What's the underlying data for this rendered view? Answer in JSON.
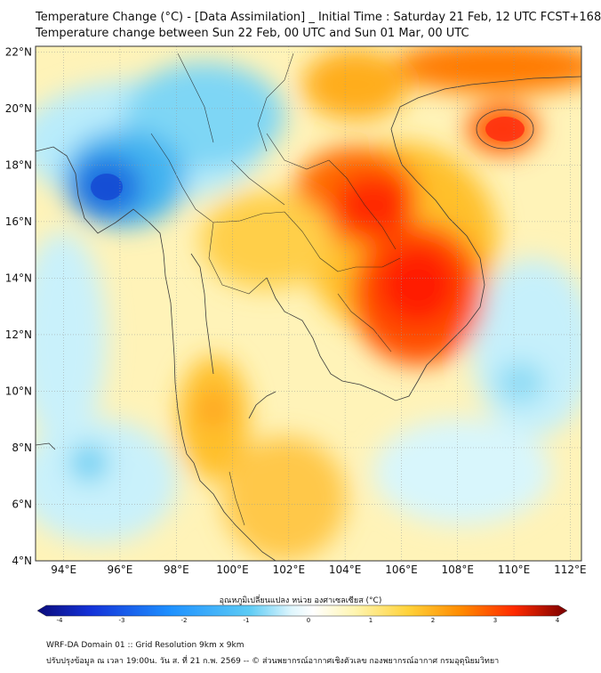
{
  "header": {
    "title_line1": "Temperature Change (°C) - [Data Assimilation] _ Initial Time : Saturday 21 Feb, 12 UTC FCST+168",
    "title_line2": "Temperature change between Sun 22 Feb, 00 UTC and Sun 01 Mar, 00 UTC"
  },
  "map": {
    "lat_labels": [
      "22°N",
      "20°N",
      "18°N",
      "16°N",
      "14°N",
      "12°N",
      "10°N",
      "8°N",
      "6°N",
      "4°N"
    ],
    "lon_labels": [
      "94°E",
      "96°E",
      "98°E",
      "100°E",
      "102°E",
      "104°E",
      "106°E",
      "108°E",
      "110°E",
      "112°E"
    ],
    "lat_values": [
      22,
      20,
      18,
      16,
      14,
      12,
      10,
      8,
      6,
      4
    ],
    "lon_values": [
      94,
      96,
      98,
      100,
      102,
      104,
      106,
      108,
      110,
      112
    ],
    "extent": {
      "lon_min": 93.0,
      "lon_max": 112.4,
      "lat_min": 4.0,
      "lat_max": 22.2
    },
    "features": [
      {
        "name": "cold anomaly over Myanmar",
        "lon": 95.8,
        "lat": 17.2,
        "value": -3.5
      },
      {
        "name": "warm anomaly over Laos / Vietnam",
        "lon": 105.0,
        "lat": 16.0,
        "value": 3.0
      },
      {
        "name": "warm anomaly over Cambodia",
        "lon": 106.5,
        "lat": 13.2,
        "value": 3.3
      },
      {
        "name": "warm anomaly over Hainan",
        "lon": 109.8,
        "lat": 19.3,
        "value": 3.0
      },
      {
        "name": "warm band over south China",
        "lon": 106.0,
        "lat": 21.8,
        "value": 2.6
      }
    ]
  },
  "colorbar": {
    "title": "อุณหภูมิเปลี่ยนแปลง หน่วย องศาเซลเซียส (°C)",
    "ticks": [
      "-4",
      "-3",
      "-2",
      "-1",
      "0",
      "1",
      "2",
      "3",
      "4"
    ],
    "min": -4,
    "max": 4,
    "colors": [
      "#0b0b7a",
      "#1432d8",
      "#1e90ff",
      "#5ccbf5",
      "#c8f0fb",
      "#ffffff",
      "#fff5b0",
      "#ffd23a",
      "#ff8a00",
      "#ff2a00",
      "#c0000b",
      "#6a0000"
    ]
  },
  "footer": {
    "line1": "WRF-DA Domain 01 :: Grid Resolution 9km x 9km",
    "line2": "ปรับปรุงข้อมูล ณ เวลา 19:00น. วัน ส. ที่ 21 ก.พ. 2569 -- © ส่วนพยากรณ์อากาศเชิงตัวเลข กองพยากรณ์อากาศ กรมอุตุนิยมวิทยา"
  }
}
